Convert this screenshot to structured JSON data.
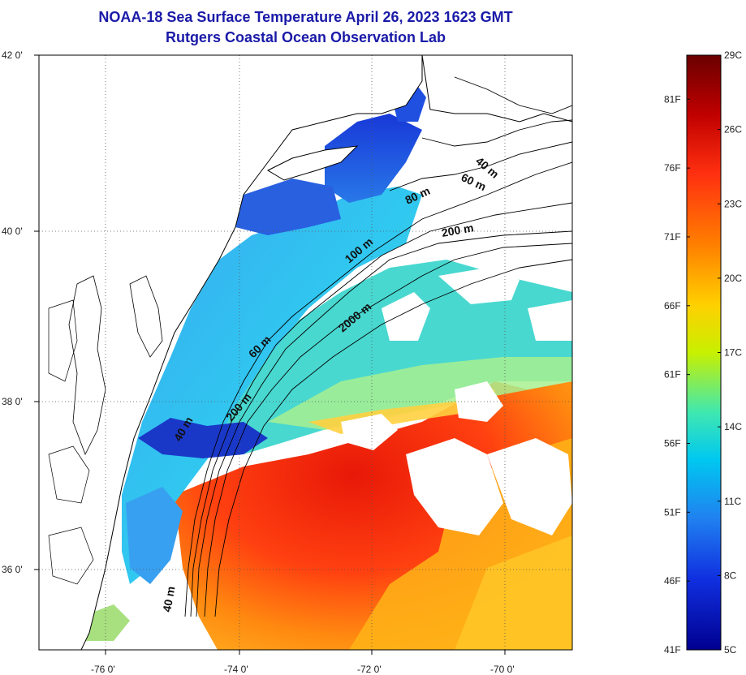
{
  "title": {
    "line1": "NOAA-18 Sea Surface Temperature April 26, 2023 1623 GMT",
    "line2": "Rutgers Coastal Ocean Observation Lab"
  },
  "map": {
    "lat_ticks": [
      "42 0'",
      "40 0'",
      "38 0'",
      "36 0'"
    ],
    "lon_ticks": [
      "-76 0'",
      "-74 0'",
      "-72 0'",
      "-70 0'"
    ],
    "contour_labels": [
      "40 m",
      "60 m",
      "80 m",
      "200 m",
      "100 m",
      "2000 m",
      "60 m",
      "200 m",
      "40 m",
      "40 m"
    ]
  },
  "colorbar": {
    "fahrenheit_labels": [
      "81F",
      "76F",
      "71F",
      "66F",
      "61F",
      "56F",
      "51F",
      "46F",
      "41F"
    ],
    "celsius_labels": [
      "29C",
      "26C",
      "23C",
      "20C",
      "17C",
      "14C",
      "11C",
      "8C",
      "5C"
    ],
    "colors": [
      "#6a0000",
      "#c00000",
      "#ff3010",
      "#ff8000",
      "#ffd000",
      "#c8f000",
      "#40e8b0",
      "#00c8f0",
      "#2080f0",
      "#1030e0",
      "#000090"
    ]
  }
}
